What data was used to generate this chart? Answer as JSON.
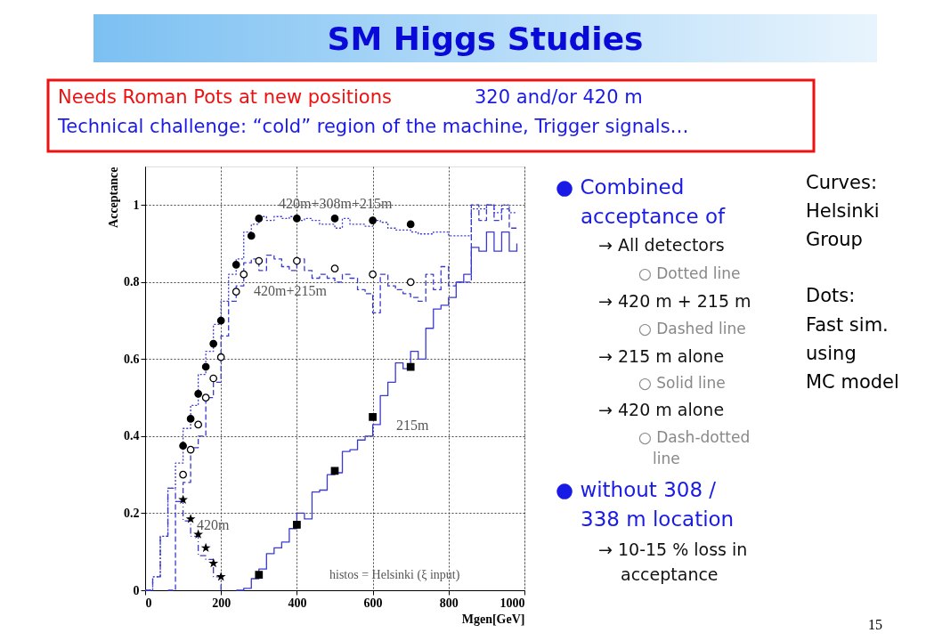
{
  "chart_data": {
    "type": "step",
    "title": "SM Higgs Studies",
    "xlabel": "Mgen[GeV]",
    "ylabel": "Acceptance",
    "xlim": [
      0,
      1000
    ],
    "xticks": [
      0,
      200,
      400,
      600,
      800,
      1000
    ],
    "ylim": [
      0,
      1.1
    ],
    "yticks": [
      {
        "value": 0,
        "label": "0"
      },
      0.2,
      0.4,
      0.6,
      0.8,
      {
        "value": 1,
        "label": "1"
      }
    ],
    "grid": true,
    "series": [
      {
        "line_style": "dotted",
        "color": "#3a3ad0",
        "x": [
          0,
          20,
          40,
          60,
          80,
          100,
          120,
          140,
          160,
          180,
          200,
          220,
          240,
          260,
          280,
          300,
          320,
          340,
          360,
          380,
          400,
          420,
          440,
          460,
          480,
          500,
          520,
          540,
          560,
          580,
          600,
          620,
          640,
          660,
          680,
          700,
          720,
          740,
          760,
          780,
          800,
          820,
          840,
          860,
          880,
          900,
          920,
          940,
          960,
          980
        ],
        "values": [
          0,
          0.035,
          0.14,
          0.265,
          0.33,
          0.42,
          0.48,
          0.56,
          0.62,
          0.69,
          0.75,
          0.82,
          0.86,
          0.93,
          0.95,
          0.97,
          0.96,
          0.97,
          0.965,
          0.97,
          0.96,
          0.965,
          0.96,
          0.95,
          0.95,
          0.94,
          0.965,
          0.95,
          0.95,
          0.945,
          0.96,
          0.955,
          0.94,
          0.935,
          0.935,
          0.93,
          0.925,
          0.925,
          0.93,
          0.93,
          0.92,
          0.92,
          0.92,
          0.99,
          0.99,
          1.0,
          0.98,
          1.0,
          0.98,
          0.98
        ]
      },
      {
        "line_style": "dashed",
        "color": "#3a3ad0",
        "x": [
          60,
          80,
          100,
          120,
          140,
          160,
          180,
          200,
          220,
          240,
          260,
          280,
          300,
          320,
          340,
          360,
          380,
          400,
          420,
          440,
          460,
          480,
          500,
          520,
          540,
          560,
          580,
          600,
          620,
          640,
          660,
          680,
          700,
          720,
          740,
          760,
          780,
          800,
          820,
          840,
          860,
          880,
          900,
          920,
          940,
          960,
          980
        ],
        "values": [
          0,
          0.23,
          0.28,
          0.37,
          0.4,
          0.5,
          0.54,
          0.66,
          0.75,
          0.79,
          0.85,
          0.86,
          0.83,
          0.87,
          0.86,
          0.84,
          0.83,
          0.86,
          0.83,
          0.81,
          0.82,
          0.81,
          0.8,
          0.82,
          0.81,
          0.78,
          0.77,
          0.72,
          0.82,
          0.79,
          0.78,
          0.77,
          0.76,
          0.75,
          0.82,
          0.78,
          0.84,
          0.79,
          0.8,
          0.8,
          1.0,
          0.96,
          1.0,
          0.96,
          0.99,
          0.94,
          0.94
        ]
      },
      {
        "line_style": "solid",
        "color": "#3a3ad0",
        "x": [
          240,
          260,
          280,
          300,
          320,
          340,
          360,
          380,
          400,
          420,
          440,
          460,
          480,
          500,
          520,
          540,
          560,
          580,
          600,
          620,
          640,
          660,
          680,
          700,
          720,
          740,
          760,
          780,
          800,
          820,
          840,
          860,
          880,
          900,
          920,
          940,
          960,
          980
        ],
        "values": [
          0,
          0.005,
          0.03,
          0.055,
          0.095,
          0.11,
          0.125,
          0.16,
          0.2,
          0.185,
          0.255,
          0.26,
          0.3,
          0.305,
          0.36,
          0.365,
          0.39,
          0.4,
          0.43,
          0.505,
          0.54,
          0.59,
          0.575,
          0.62,
          0.6,
          0.68,
          0.73,
          0.74,
          0.76,
          0.8,
          0.82,
          0.89,
          0.88,
          0.93,
          0.88,
          0.93,
          0.88,
          0.9
        ]
      },
      {
        "line_style": "dashdot",
        "color": "#3a3ad0",
        "x": [
          0,
          20,
          40,
          60,
          80,
          100,
          120,
          140,
          160,
          180,
          200
        ],
        "values": [
          0,
          0.035,
          0.14,
          0.265,
          0.23,
          0.18,
          0.14,
          0.09,
          0.08,
          0.035,
          0
        ]
      },
      {
        "type": "scatter",
        "marker": "circle",
        "color": "#000000",
        "x": [
          100,
          120,
          140,
          160,
          180,
          200,
          240,
          280,
          300,
          400,
          500,
          600,
          700
        ],
        "values": [
          0.375,
          0.445,
          0.51,
          0.58,
          0.64,
          0.7,
          0.845,
          0.92,
          0.965,
          0.965,
          0.965,
          0.96,
          0.95
        ]
      },
      {
        "type": "scatter",
        "marker": "circle",
        "color": "#ffffff",
        "x": [
          100,
          120,
          140,
          160,
          180,
          200,
          240,
          260,
          300,
          400,
          500,
          600,
          700
        ],
        "values": [
          0.3,
          0.365,
          0.43,
          0.5,
          0.55,
          0.605,
          0.775,
          0.82,
          0.855,
          0.855,
          0.835,
          0.82,
          0.8
        ]
      },
      {
        "type": "scatter",
        "marker": "star",
        "color": "#000000",
        "x": [
          100,
          120,
          140,
          160,
          180,
          200
        ],
        "values": [
          0.235,
          0.185,
          0.145,
          0.11,
          0.07,
          0.035
        ]
      },
      {
        "type": "scatter",
        "marker": "square",
        "color": "#000000",
        "x": [
          300,
          400,
          500,
          600,
          700
        ],
        "values": [
          0.04,
          0.17,
          0.31,
          0.45,
          0.58
        ]
      }
    ],
    "annotations": [
      "Needs Roman Pots at new positions",
      "320 and/or 420 m",
      "Technical challenge: “cold” region of the machine, Trigger signals…",
      "420m+308m+215m",
      "420m+215m",
      "215m",
      "420m",
      "histos = Helsinki (ξ input)",
      "● Combined",
      "acceptance of",
      "→  All detectors",
      "○ Dotted line",
      "→  420 m + 215 m",
      "○ Dashed line",
      "→  215 m alone",
      "○ Solid line",
      "→  420 m alone",
      "○ Dash-dotted",
      "line",
      "● without 308 /",
      "338 m location",
      "→  10-15 % loss in",
      "acceptance",
      "Curves:",
      "Helsinki",
      "Group",
      "Dots:",
      "Fast sim.",
      "using",
      "MC model",
      "15"
    ]
  }
}
